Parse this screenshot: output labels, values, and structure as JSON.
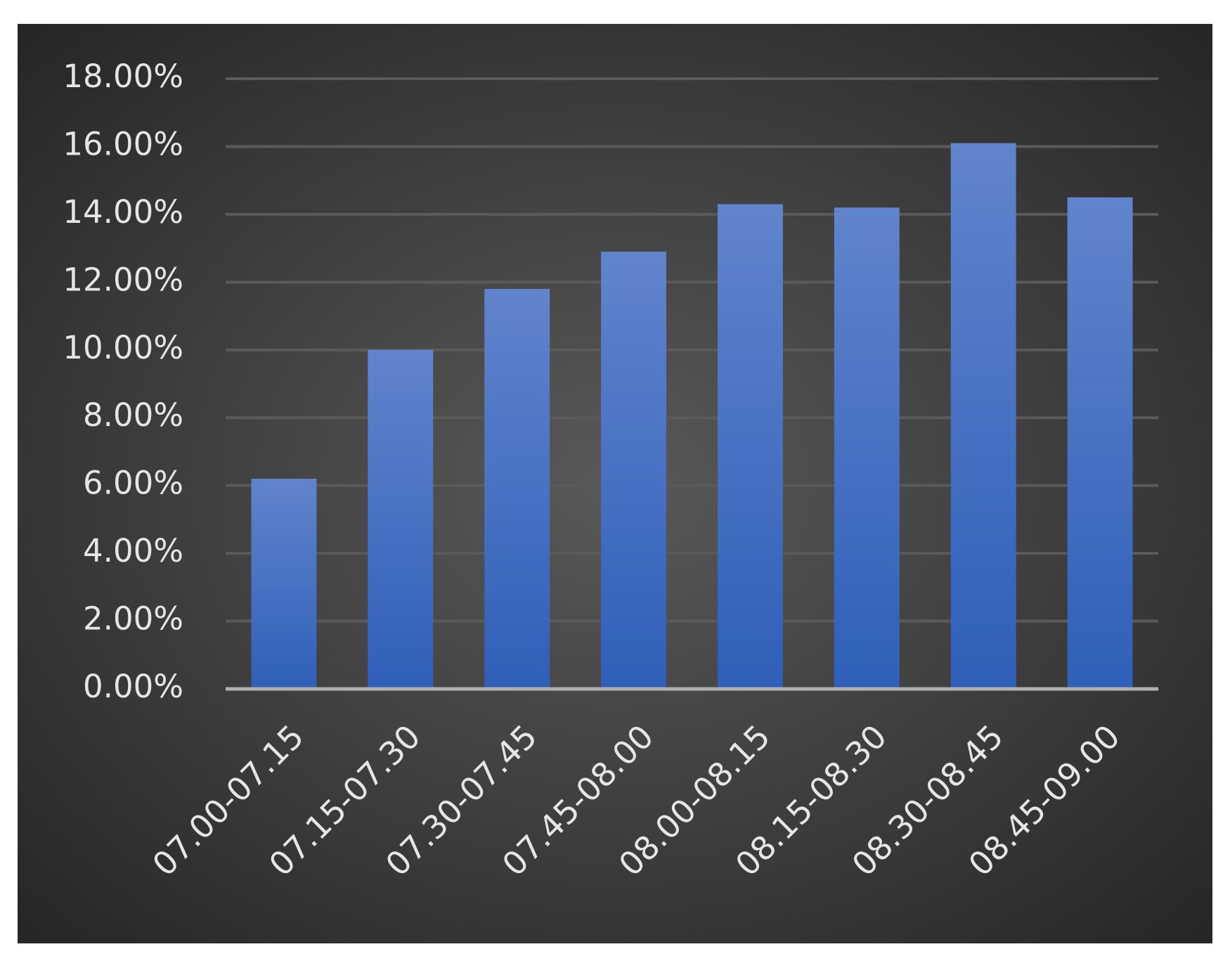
{
  "chart_data": {
    "type": "bar",
    "categories": [
      "07.00-07.15",
      "07.15-07.30",
      "07.30-07.45",
      "07.45-08.00",
      "08.00-08.15",
      "08.15-08.30",
      "08.30-08.45",
      "08.45-09.00"
    ],
    "values": [
      6.2,
      10.0,
      11.8,
      12.9,
      14.3,
      14.2,
      16.1,
      14.5
    ],
    "color": "#4472c4",
    "ylim": [
      0,
      18
    ],
    "yticks": [
      {
        "value": 0,
        "label": "0.00%"
      },
      {
        "value": 2,
        "label": "2.00%"
      },
      {
        "value": 4,
        "label": "4.00%"
      },
      {
        "value": 6,
        "label": "6.00%"
      },
      {
        "value": 8,
        "label": "8.00%"
      },
      {
        "value": 10,
        "label": "10.00%"
      },
      {
        "value": 12,
        "label": "12.00%"
      },
      {
        "value": 14,
        "label": "14.00%"
      },
      {
        "value": 16,
        "label": "16.00%"
      },
      {
        "value": 18,
        "label": "18.00%"
      }
    ],
    "grid": true
  }
}
